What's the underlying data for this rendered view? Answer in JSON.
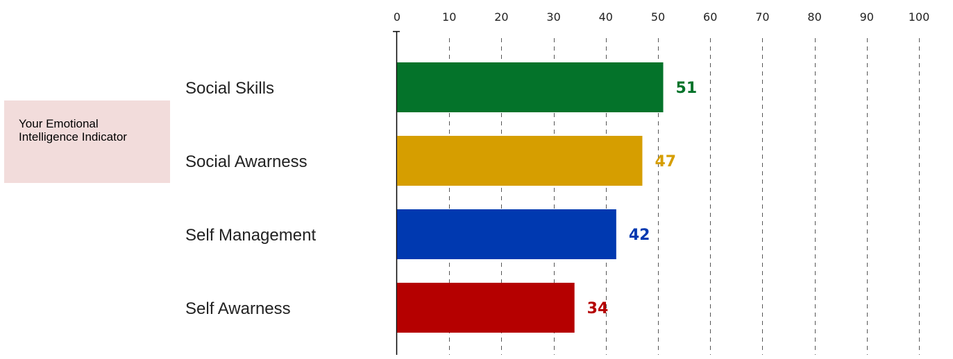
{
  "side_panel": {
    "text": "Your Emotional Intelligence Indicator"
  },
  "chart_data": {
    "type": "bar",
    "orientation": "horizontal",
    "xlim": [
      0,
      100
    ],
    "ticks": [
      0,
      10,
      20,
      30,
      40,
      50,
      60,
      70,
      80,
      90,
      100
    ],
    "tick_position": "top",
    "grid": "vertical dashed",
    "categories": [
      "Social Skills",
      "Social Awarness",
      "Self Management",
      "Self Awarness"
    ],
    "values": [
      51,
      47,
      42,
      34
    ],
    "colors": [
      "#04732a",
      "#d69e00",
      "#0039b0",
      "#b50000"
    ]
  }
}
